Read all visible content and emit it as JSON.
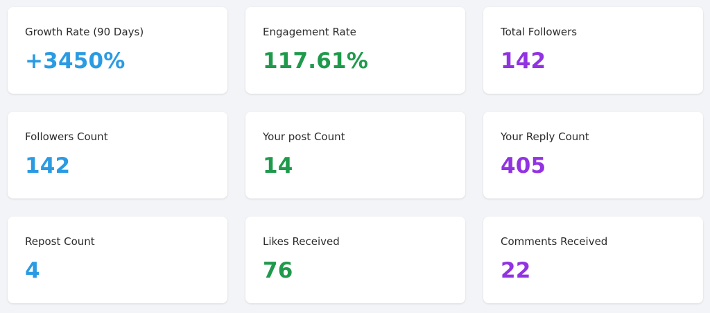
{
  "colors": {
    "blue": "#2a9be3",
    "green": "#1f9a4c",
    "purple": "#9233e2"
  },
  "cards": [
    {
      "label": "Growth Rate (90 Days)",
      "value": "+3450%",
      "color": "#2a9be3"
    },
    {
      "label": "Engagement Rate",
      "value": "117.61%",
      "color": "#1f9a4c"
    },
    {
      "label": "Total Followers",
      "value": "142",
      "color": "#9233e2"
    },
    {
      "label": "Followers Count",
      "value": "142",
      "color": "#2a9be3"
    },
    {
      "label": "Your post Count",
      "value": "14",
      "color": "#1f9a4c"
    },
    {
      "label": "Your Reply Count",
      "value": "405",
      "color": "#9233e2"
    },
    {
      "label": "Repost Count",
      "value": "4",
      "color": "#2a9be3"
    },
    {
      "label": "Likes Received",
      "value": "76",
      "color": "#1f9a4c"
    },
    {
      "label": "Comments Received",
      "value": "22",
      "color": "#9233e2"
    }
  ]
}
